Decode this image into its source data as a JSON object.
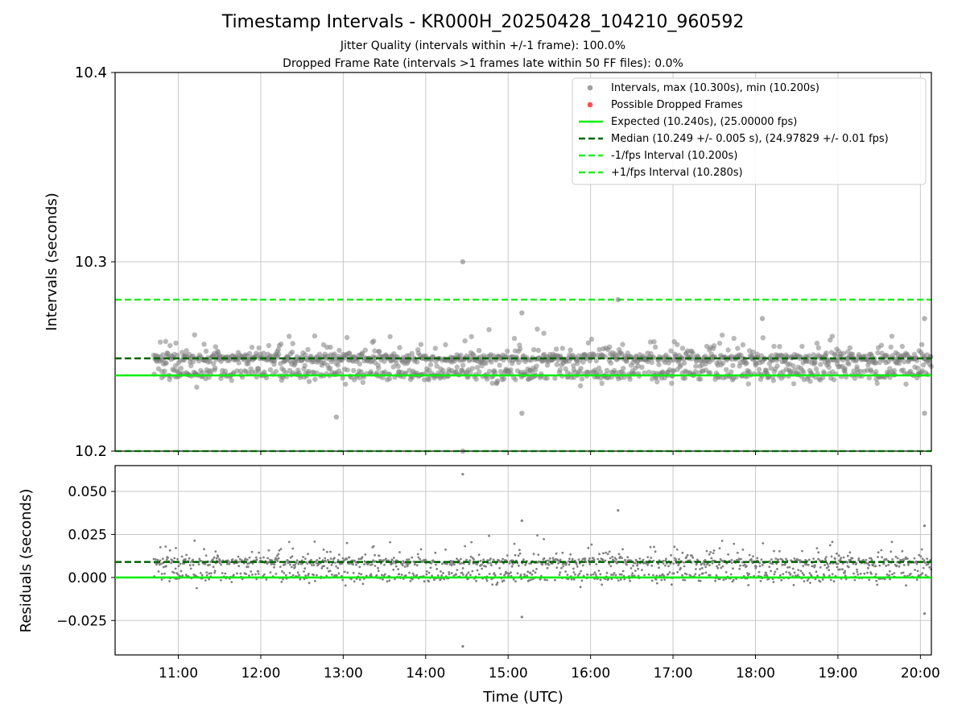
{
  "figure": {
    "title": "Timestamp Intervals - KR000H_20250428_104210_960592",
    "subtitle_1": "Jitter Quality (intervals within +/-1 frame): 100.0%",
    "subtitle_2": "Dropped Frame Rate (intervals >1 frames late within 50 FF files): 0.0%"
  },
  "colors": {
    "points": "#808080",
    "dropped": "#ff5050",
    "expected": "#00ee00",
    "median": "#006400",
    "fps_bounds": "#22ee22",
    "grid": "#c8c8c8"
  },
  "chart_data": [
    {
      "type": "scatter",
      "ylabel": "Intervals (seconds)",
      "ylim": [
        10.2,
        10.4
      ],
      "y_ticks": [
        "10.2",
        "10.3",
        "10.4"
      ],
      "y_tick_values": [
        10.2,
        10.3,
        10.4
      ],
      "xlim": [
        "10:14",
        "20:08"
      ],
      "grid": true,
      "legend_position": "top-right",
      "legend": [
        {
          "label": "Intervals, max (10.300s), min (10.200s)",
          "style": "marker",
          "color": "#a0a0a0"
        },
        {
          "label": "Possible Dropped Frames",
          "style": "marker",
          "color": "#ff5050"
        },
        {
          "label": "Expected (10.240s), (25.00000 fps)",
          "style": "solid",
          "color": "#00ee00"
        },
        {
          "label": "Median (10.249 +/- 0.005 s), (24.97829 +/- 0.01 fps)",
          "style": "dashed",
          "color": "#006400"
        },
        {
          "label": "-1/fps Interval (10.200s)",
          "style": "dashed",
          "color": "#22ee22"
        },
        {
          "label": "+1/fps Interval (10.280s)",
          "style": "dashed",
          "color": "#22ee22"
        }
      ],
      "reference_lines": {
        "expected": 10.24,
        "median": 10.249,
        "minus_1_fps": 10.2,
        "plus_1_fps": 10.28
      },
      "series": [
        {
          "name": "Intervals, max (10.300s), min (10.200s)",
          "time_range": [
            "10:42",
            "20:08"
          ],
          "median": 10.249,
          "std": 0.005,
          "max": 10.3,
          "min": 10.2,
          "notable_points": [
            {
              "x": "14:27",
              "y": 10.3
            },
            {
              "x": "14:27",
              "y": 10.2
            },
            {
              "x": "16:20",
              "y": 10.28
            },
            {
              "x": "12:55",
              "y": 10.218
            },
            {
              "x": "15:10",
              "y": 10.273
            },
            {
              "x": "15:10",
              "y": 10.22
            },
            {
              "x": "20:03",
              "y": 10.27
            },
            {
              "x": "20:03",
              "y": 10.22
            },
            {
              "x": "18:05",
              "y": 10.27
            }
          ]
        }
      ]
    },
    {
      "type": "scatter",
      "xlabel": "Time (UTC)",
      "ylabel": "Residuals (seconds)",
      "ylim": [
        -0.045,
        0.065
      ],
      "y_ticks": [
        "−0.025",
        "0.000",
        "0.025",
        "0.050"
      ],
      "y_tick_values": [
        -0.025,
        0.0,
        0.025,
        0.05
      ],
      "x_ticks": [
        "11:00",
        "12:00",
        "13:00",
        "14:00",
        "15:00",
        "16:00",
        "17:00",
        "18:00",
        "19:00",
        "20:00"
      ],
      "xlim": [
        "10:14",
        "20:08"
      ],
      "grid": true,
      "reference_lines": {
        "zero": 0.0,
        "median": 0.009
      },
      "series": [
        {
          "name": "Residuals",
          "median": 0.009,
          "max": 0.06,
          "min": -0.04,
          "notable_points": [
            {
              "x": "14:27",
              "y": 0.06
            },
            {
              "x": "14:27",
              "y": -0.04
            },
            {
              "x": "16:20",
              "y": 0.039
            },
            {
              "x": "15:10",
              "y": 0.033
            },
            {
              "x": "15:10",
              "y": -0.023
            },
            {
              "x": "20:03",
              "y": 0.03
            },
            {
              "x": "20:03",
              "y": -0.021
            }
          ]
        }
      ]
    }
  ]
}
